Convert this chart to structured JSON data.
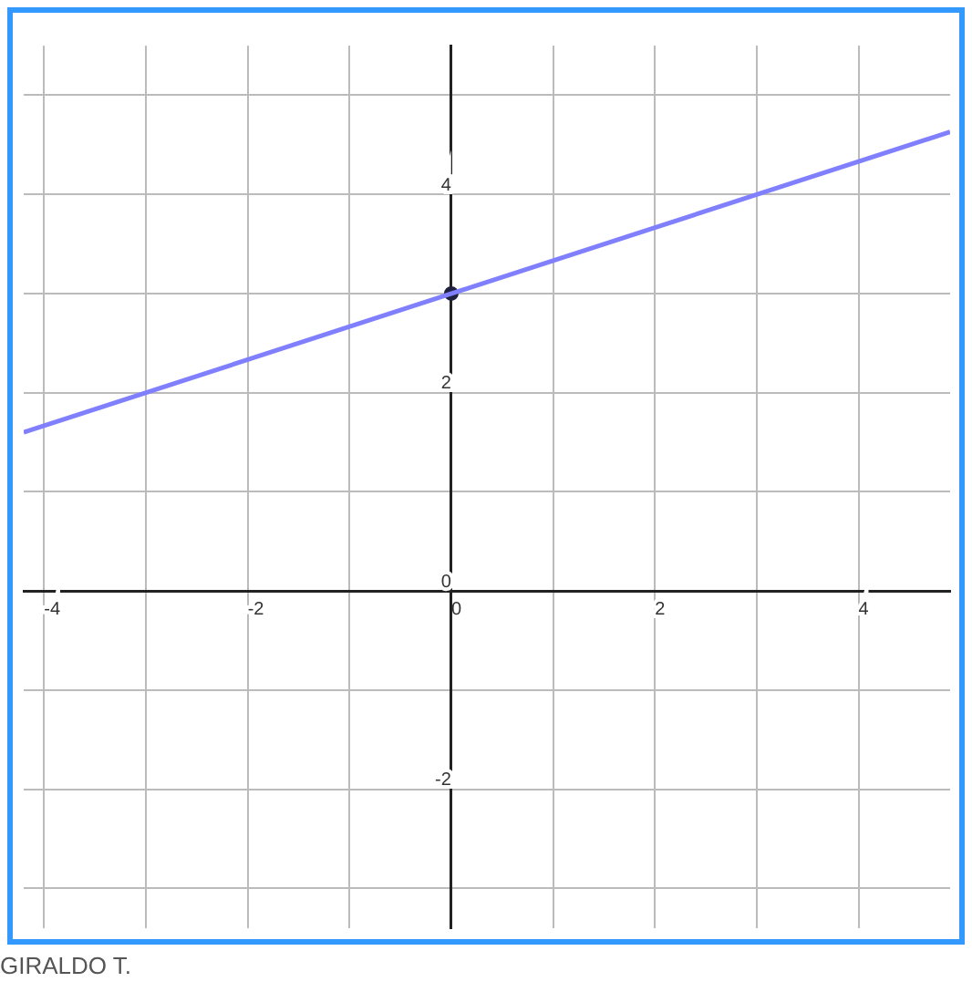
{
  "chart_data": {
    "type": "line",
    "xlim": [
      -4.2,
      4.9
    ],
    "ylim": [
      -3.4,
      5.5
    ],
    "xticks": [
      {
        "value": -4,
        "label": "-4"
      },
      {
        "value": -3,
        "label": null
      },
      {
        "value": -2,
        "label": "-2"
      },
      {
        "value": -1,
        "label": null
      },
      {
        "value": 0,
        "label": "0"
      },
      {
        "value": 1,
        "label": null
      },
      {
        "value": 2,
        "label": "2"
      },
      {
        "value": 3,
        "label": null
      },
      {
        "value": 4,
        "label": "4"
      }
    ],
    "yticks": [
      {
        "value": -3,
        "label": null
      },
      {
        "value": -2,
        "label": "-2"
      },
      {
        "value": -1,
        "label": null
      },
      {
        "value": 0,
        "label": "0"
      },
      {
        "value": 1,
        "label": null
      },
      {
        "value": 2,
        "label": "2"
      },
      {
        "value": 3,
        "label": null
      },
      {
        "value": 4,
        "label": "4"
      },
      {
        "value": 5,
        "label": null
      }
    ],
    "series": [
      {
        "color": "#8080ff",
        "x": [
          -4.2,
          4.9
        ],
        "values": [
          1.6,
          4.63
        ],
        "marker": "none"
      },
      {
        "type": "scatter",
        "color": "#202040",
        "x": [
          0
        ],
        "values": [
          3
        ],
        "marker": "circle"
      }
    ],
    "grid": true,
    "legend": false,
    "annotations": [
      "GIRALDO T."
    ]
  }
}
